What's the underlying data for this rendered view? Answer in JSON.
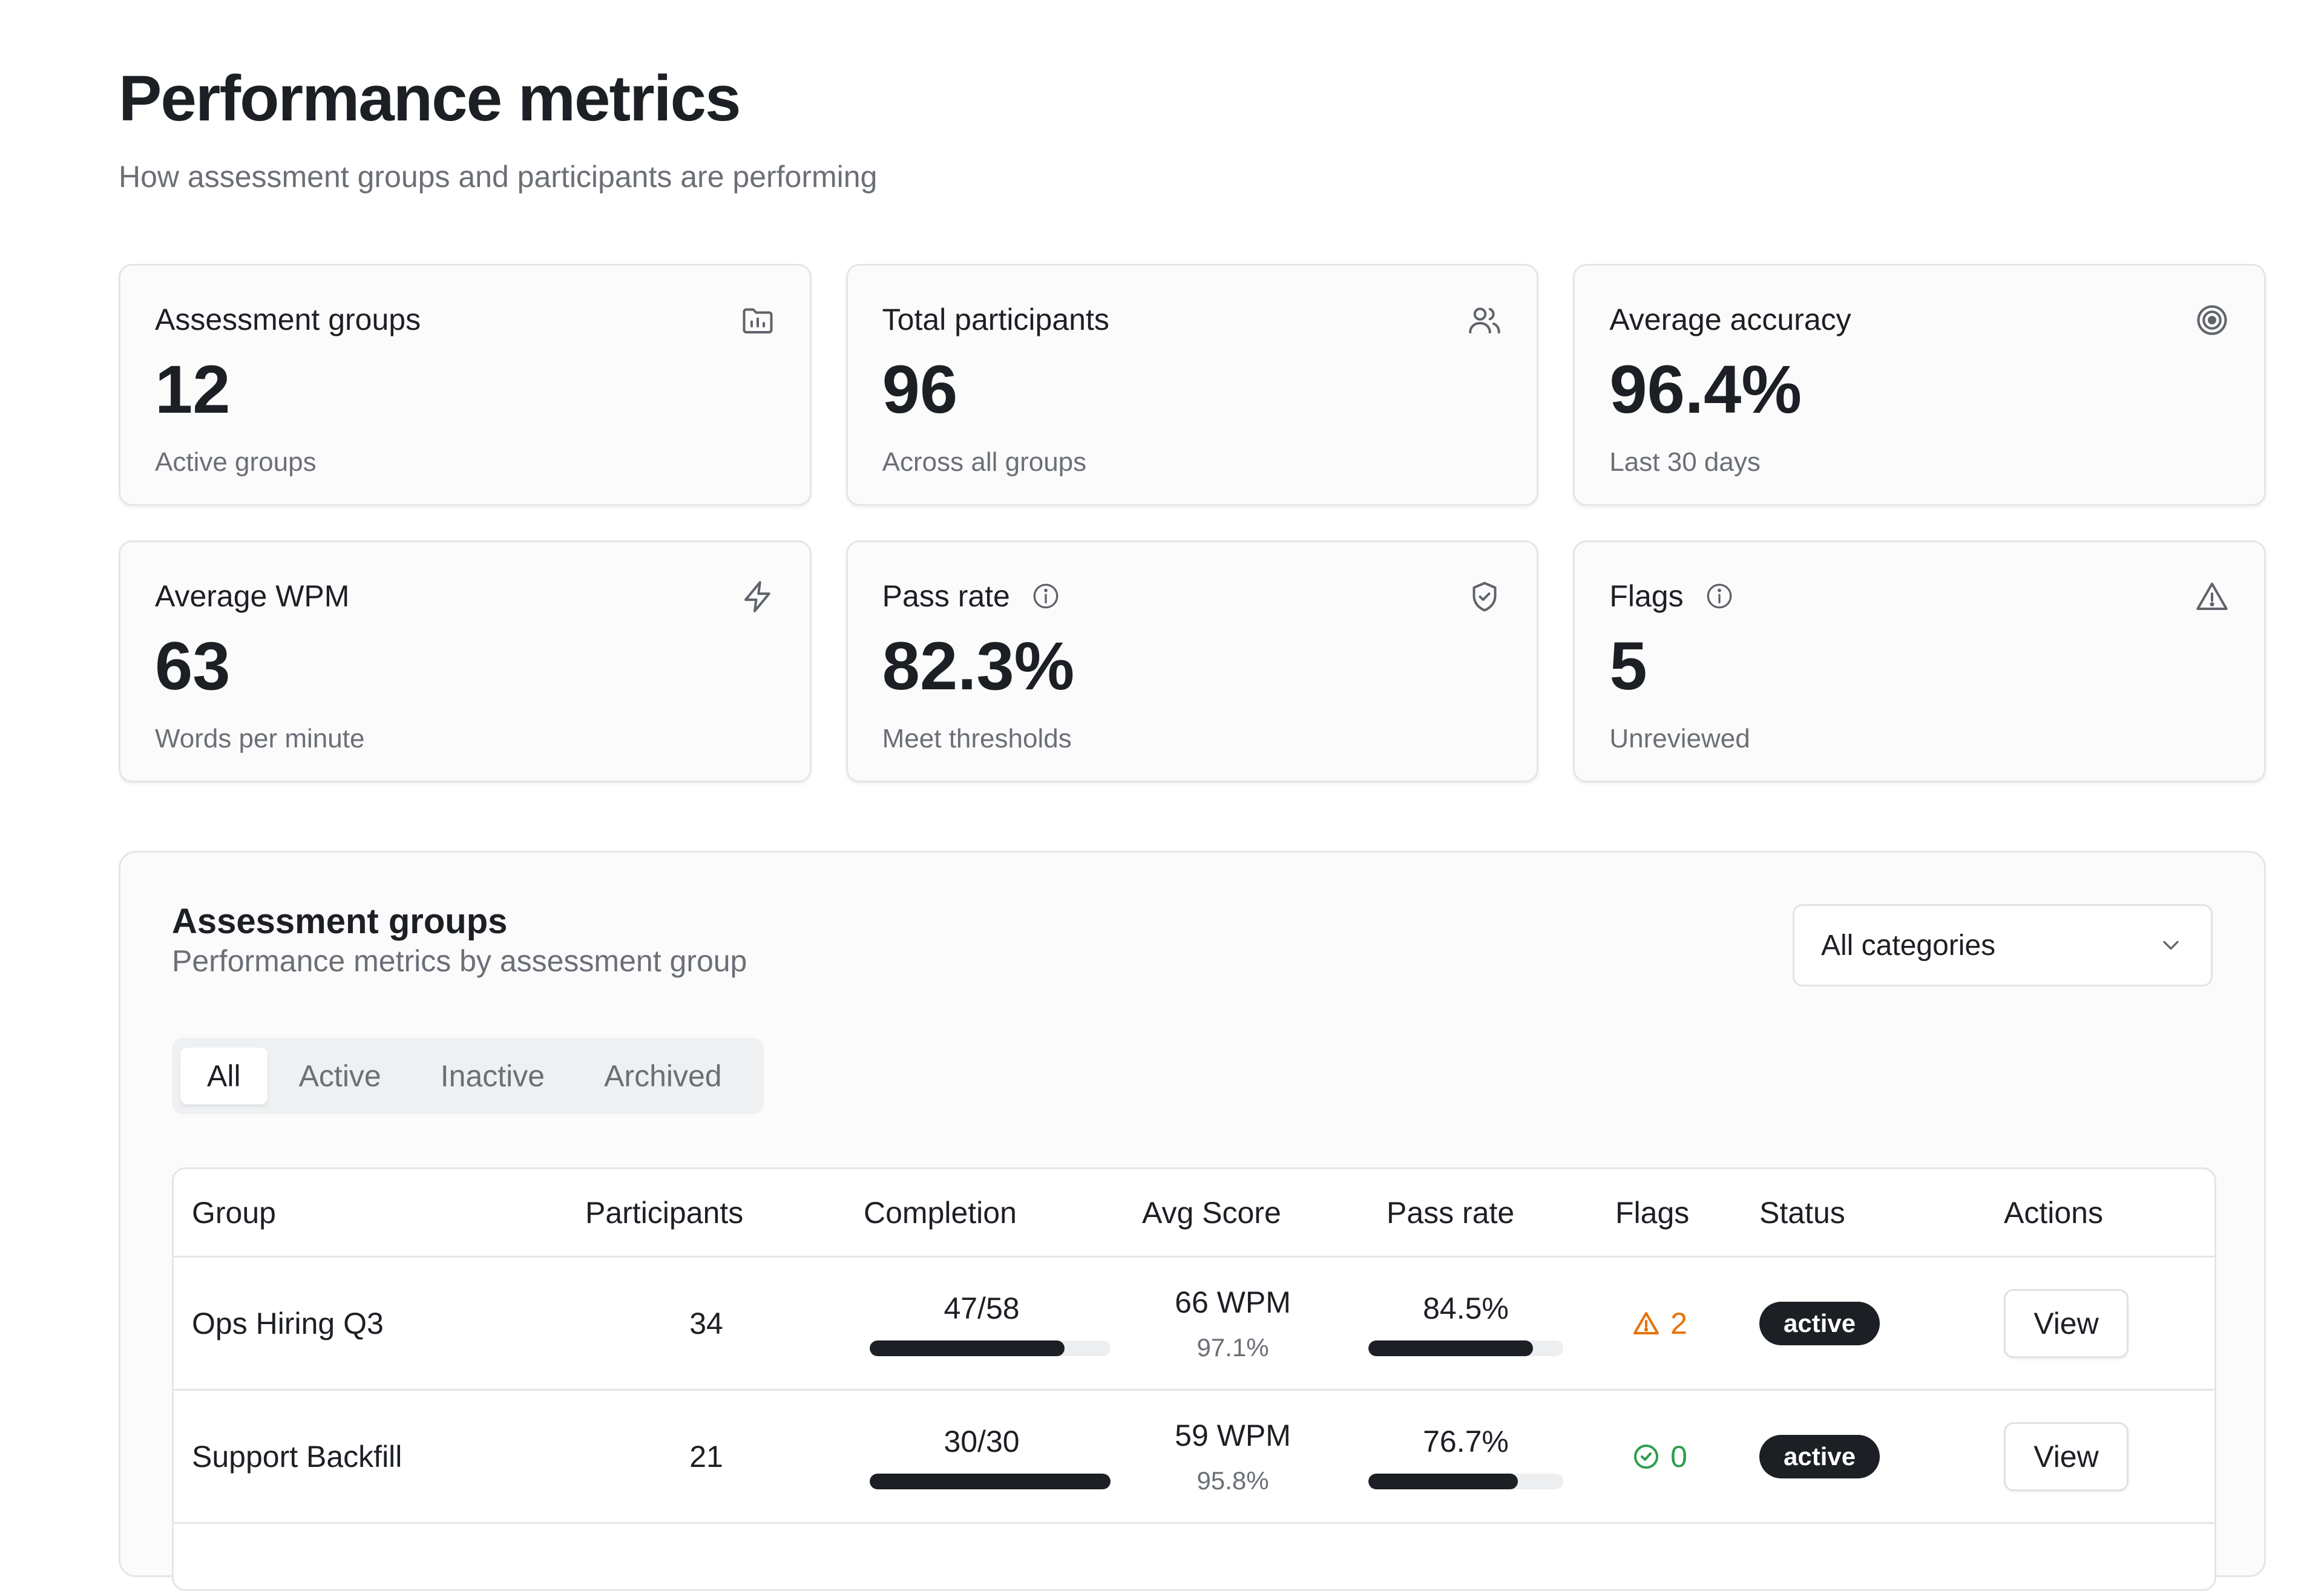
{
  "header": {
    "title": "Performance metrics",
    "subtitle": "How assessment groups and participants are performing"
  },
  "stats": [
    {
      "label": "Assessment groups",
      "value": "12",
      "sub": "Active groups",
      "icon": "folder-chart-icon"
    },
    {
      "label": "Total participants",
      "value": "96",
      "sub": "Across all groups",
      "icon": "users-icon"
    },
    {
      "label": "Average accuracy",
      "value": "96.4%",
      "sub": "Last 30 days",
      "icon": "target-icon"
    },
    {
      "label": "Average WPM",
      "value": "63",
      "sub": "Words per minute",
      "icon": "lightning-icon"
    },
    {
      "label": "Pass rate",
      "value": "82.3%",
      "sub": "Meet thresholds",
      "icon": "shield-check-icon"
    },
    {
      "label": "Flags",
      "value": "5",
      "sub": "Unreviewed",
      "icon": "warning-icon"
    }
  ],
  "panel": {
    "title": "Assessment groups",
    "subtitle": "Performance metrics by assessment group",
    "select_value": "All categories",
    "tabs": [
      "All",
      "Active",
      "Inactive",
      "Archived"
    ],
    "active_tab": "All"
  },
  "table": {
    "columns": [
      "Group",
      "Participants",
      "Completion",
      "Avg Score",
      "Pass rate",
      "Flags",
      "Status",
      "Actions"
    ],
    "rows": [
      {
        "group": "Ops Hiring Q3",
        "participants": "34",
        "completion": "47/58",
        "completion_fraction": 0.81,
        "avg_score": "66 WPM",
        "accuracy": "97.1%",
        "pass_rate": "84.5%",
        "pass_fraction": 0.845,
        "flags": "2",
        "flag_icon": "warning-icon",
        "flag_color": "#e8710a",
        "status": "active",
        "action": "View"
      },
      {
        "group": "Support Backfill",
        "participants": "21",
        "completion": "30/30",
        "completion_fraction": 1.0,
        "avg_score": "59 WPM",
        "accuracy": "95.8%",
        "pass_rate": "76.7%",
        "pass_fraction": 0.767,
        "flags": "0",
        "flag_icon": "check-circle-icon",
        "flag_color": "#2e9d4b",
        "status": "active",
        "action": "View"
      }
    ]
  }
}
